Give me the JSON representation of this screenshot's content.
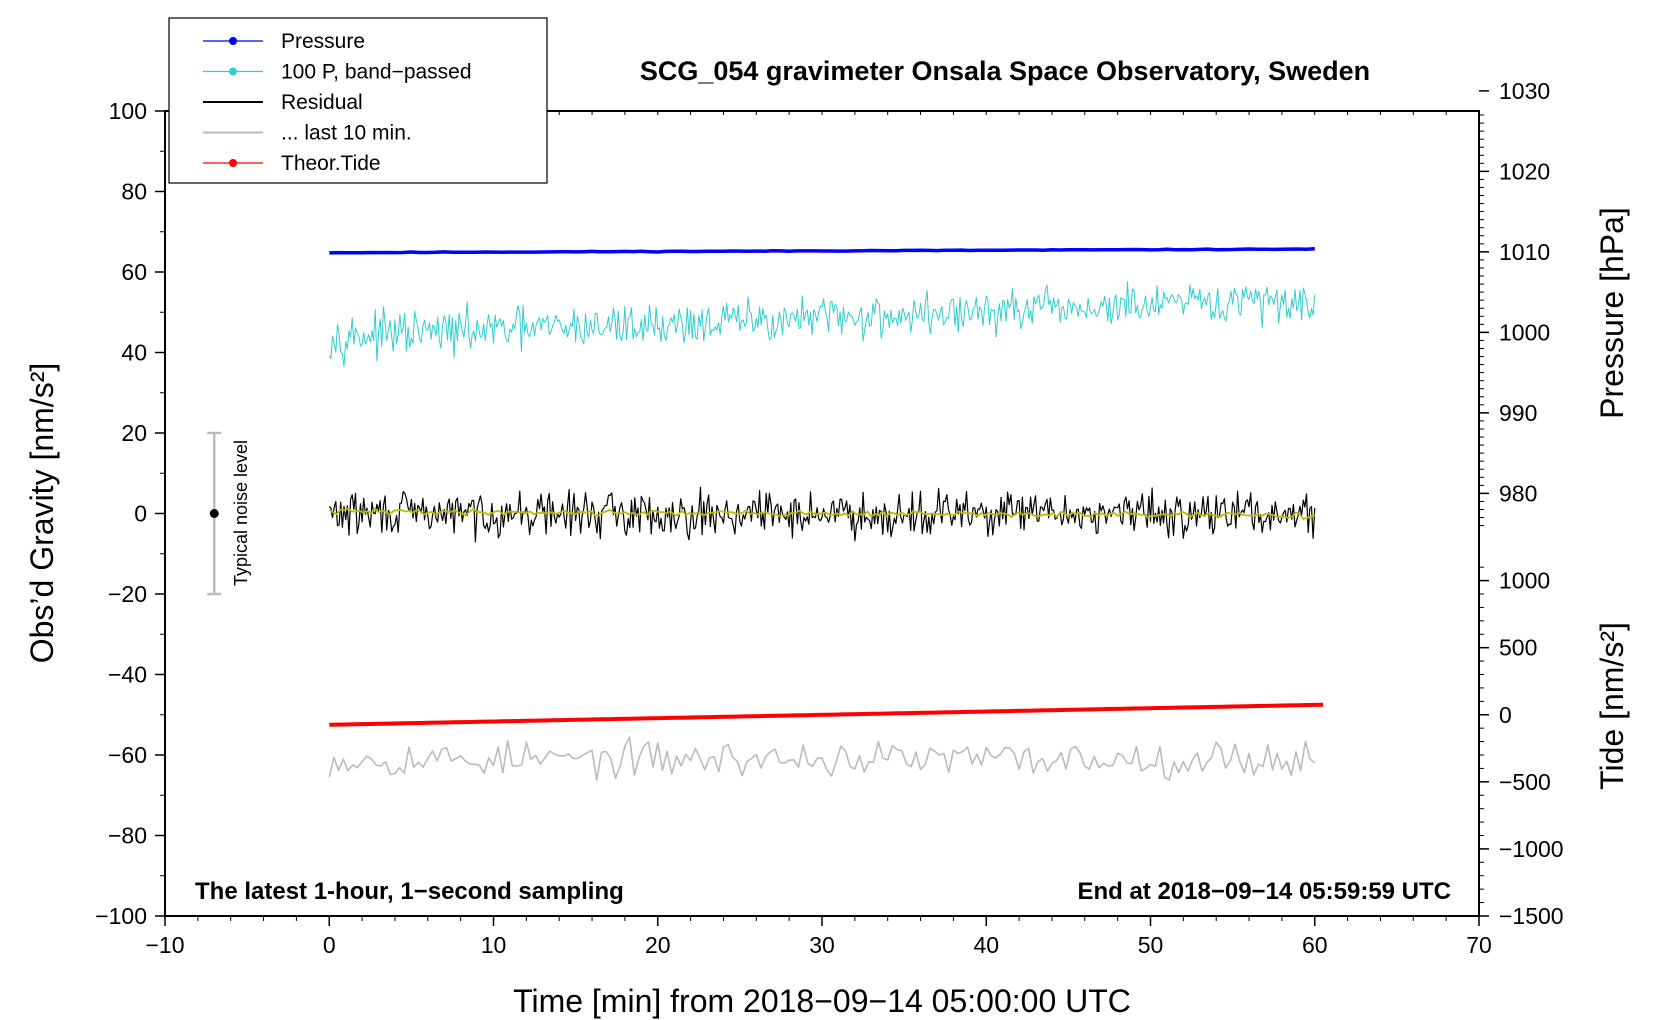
{
  "chart_data": {
    "type": "line",
    "title": "SCG_054 gravimeter Onsala Space Observatory, Sweden",
    "xlabel": "Time [min] from 2018−09−14 05:00:00 UTC",
    "ylabel_left": "Obs’d Gravity [nm/s²]",
    "ylabel_right_top": "Pressure [hPa]",
    "ylabel_right_bottom": "Tide [nm/s²]",
    "note_left": "The latest 1-hour, 1−second sampling",
    "note_right": "End at 2018−09−14 05:59:59 UTC",
    "xlim": [
      -10,
      70
    ],
    "ylim": [
      -100,
      100
    ],
    "x_ticks": [
      -10,
      0,
      10,
      20,
      30,
      40,
      50,
      60,
      70
    ],
    "x_tick_labels": [
      "−10",
      "0",
      "10",
      "20",
      "30",
      "40",
      "50",
      "60",
      "70"
    ],
    "y_ticks": [
      -100,
      -80,
      -60,
      -40,
      -20,
      0,
      20,
      40,
      60,
      80,
      100
    ],
    "y_tick_labels": [
      "−100",
      "−80",
      "−60",
      "−40",
      "−20",
      "0",
      "20",
      "40",
      "60",
      "80",
      "100"
    ],
    "pressure_axis": {
      "ticks": [
        980,
        990,
        1000,
        1010,
        1020,
        1030
      ],
      "tick_labels": [
        "980",
        "990",
        "1000",
        "1010",
        "1020",
        "1030"
      ],
      "gravity_at_1000": 45,
      "gravity_per_hpa": 2
    },
    "tide_axis": {
      "ticks": [
        -1500,
        -1000,
        -500,
        0,
        500,
        1000
      ],
      "tick_labels": [
        "−1500",
        "−1000",
        "−500",
        "0",
        "500",
        "1000"
      ],
      "gravity_at_0": -50,
      "gravity_per_unit": 0.03333
    },
    "noise_bar": {
      "x": -7,
      "low": -20,
      "high": 20,
      "center": 0,
      "label": "Typical noise level"
    },
    "legend": {
      "position": "top-left",
      "entries": [
        {
          "label": "Pressure",
          "color": "#0000ff",
          "marker": true
        },
        {
          "label": "100 P, band−passed",
          "color": "#33cccc",
          "marker": true
        },
        {
          "label": "Residual",
          "color": "#000000",
          "marker": false
        },
        {
          "label": "... last 10 min.",
          "color": "#bbbbbb",
          "marker": false
        },
        {
          "label": "Theor.Tide",
          "color": "#ff0000",
          "marker": true
        }
      ]
    },
    "series": [
      {
        "name": "Pressure",
        "color": "#0000ff",
        "x_range": [
          0,
          60
        ],
        "start": 64.8,
        "end": 65.7,
        "noise": 0.1
      },
      {
        "name": "100 P, band−passed",
        "color": "#33cccc",
        "x_range": [
          0,
          60
        ],
        "start": 44,
        "end": 53,
        "noise": 6
      },
      {
        "name": "Residual",
        "color": "#000000",
        "x_range": [
          0,
          60
        ],
        "start": 0,
        "end": 0,
        "noise": 5
      },
      {
        "name": "Residual smoothed",
        "color": "#bbbb00",
        "x_range": [
          0,
          60
        ],
        "start": 0.5,
        "end": -0.5,
        "noise": 0.8
      },
      {
        "name": "... last 10 min.",
        "color": "#bbbbbb",
        "x_range": [
          0,
          60
        ],
        "start": -61,
        "end": -61,
        "noise": 5
      },
      {
        "name": "Theor.Tide",
        "color": "#ff0000",
        "x_range": [
          0,
          60.5
        ],
        "start": -52.5,
        "end": -47.5,
        "noise": 0
      }
    ]
  }
}
